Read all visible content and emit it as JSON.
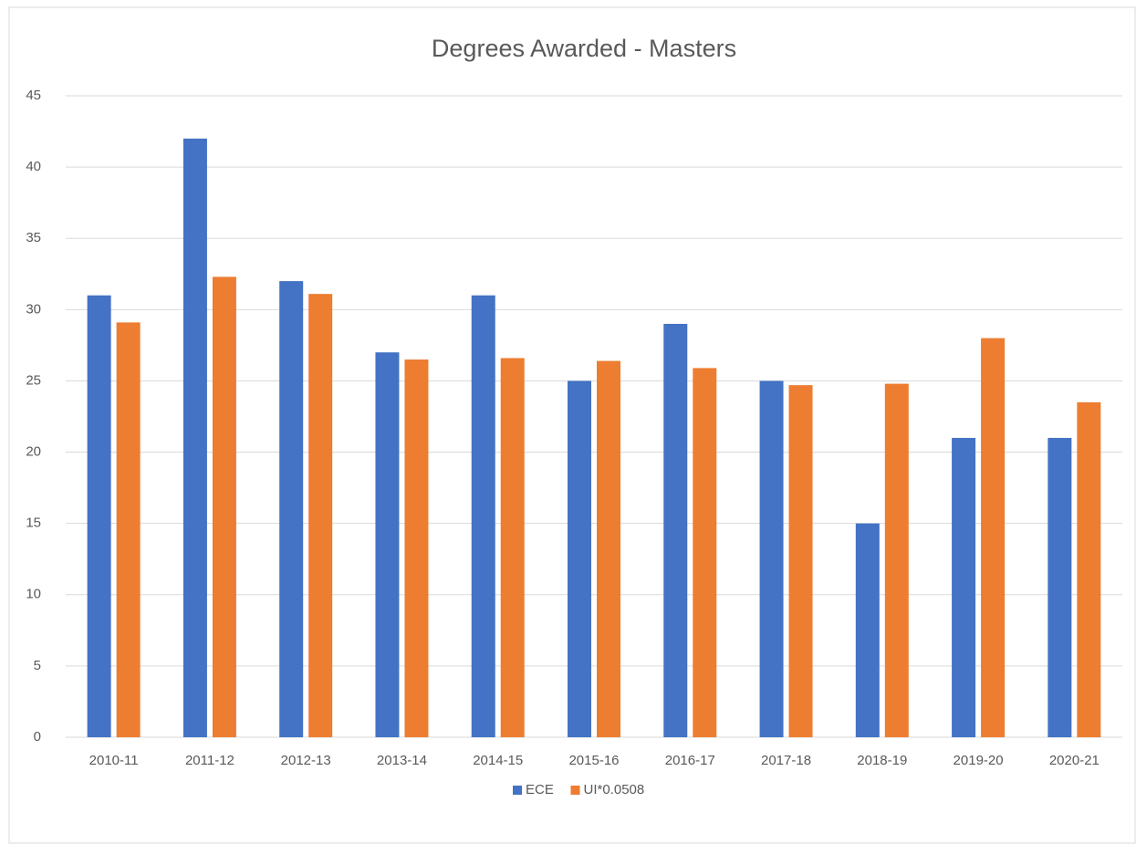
{
  "chart_data": {
    "type": "bar",
    "title": "Degrees Awarded  - Masters",
    "categories": [
      "2010-11",
      "2011-12",
      "2012-13",
      "2013-14",
      "2014-15",
      "2015-16",
      "2016-17",
      "2017-18",
      "2018-19",
      "2019-20",
      "2020-21"
    ],
    "series": [
      {
        "name": "ECE",
        "color": "#4472c4",
        "values": [
          31,
          42,
          32,
          27,
          31,
          25,
          29,
          25,
          15,
          21,
          21
        ]
      },
      {
        "name": "UI*0.0508",
        "color": "#ed7d31",
        "values": [
          29.1,
          32.3,
          31.1,
          26.5,
          26.6,
          26.4,
          25.9,
          24.7,
          24.8,
          28.0,
          23.5
        ]
      }
    ],
    "ylim": [
      0,
      45
    ],
    "yticks": [
      0,
      5,
      10,
      15,
      20,
      25,
      30,
      35,
      40,
      45
    ],
    "grid": true,
    "legend": "bottom"
  }
}
